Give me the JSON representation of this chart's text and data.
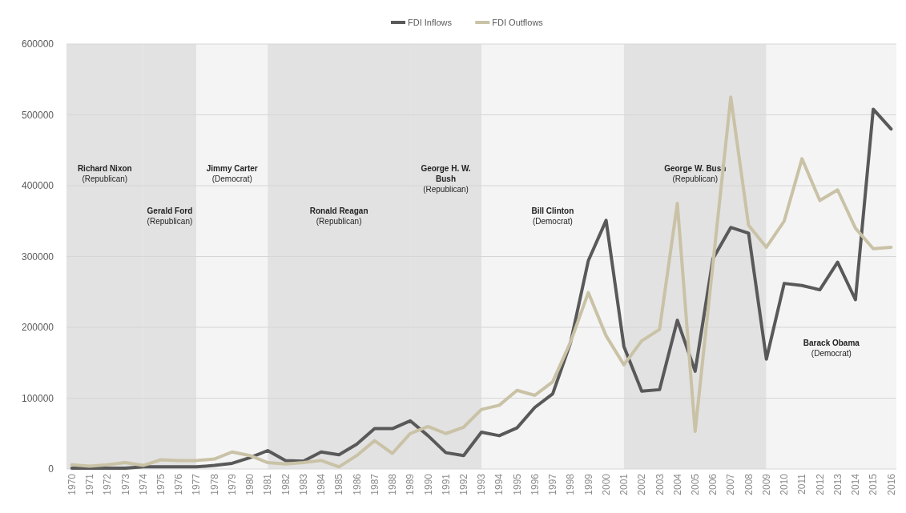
{
  "chart_data": {
    "type": "line",
    "categories": [
      "1970",
      "1971",
      "1972",
      "1973",
      "1974",
      "1975",
      "1976",
      "1977",
      "1978",
      "1979",
      "1980",
      "1981",
      "1982",
      "1983",
      "1984",
      "1985",
      "1986",
      "1987",
      "1988",
      "1989",
      "1990",
      "1991",
      "1992",
      "1993",
      "1994",
      "1995",
      "1996",
      "1997",
      "1998",
      "1999",
      "2000",
      "2001",
      "2002",
      "2003",
      "2004",
      "2005",
      "2006",
      "2007",
      "2008",
      "2009",
      "2010",
      "2011",
      "2012",
      "2013",
      "2014",
      "2015",
      "2016"
    ],
    "series": [
      {
        "name": "FDI Inflows",
        "color": "#595959",
        "values": [
          1000,
          1000,
          1000,
          1000,
          3000,
          3000,
          3000,
          3000,
          5000,
          8000,
          16000,
          26000,
          12000,
          11000,
          24000,
          20000,
          35000,
          57000,
          57000,
          68000,
          47000,
          23000,
          19000,
          52000,
          47000,
          58000,
          87000,
          106000,
          178000,
          294000,
          351000,
          173000,
          110000,
          112000,
          210000,
          138000,
          297000,
          341000,
          333000,
          155000,
          262000,
          259000,
          253000,
          292000,
          239000,
          508000,
          480000
        ]
      },
      {
        "name": "FDI Outflows",
        "color": "#c9c2a6",
        "values": [
          6000,
          4000,
          6000,
          9000,
          5000,
          13000,
          12000,
          12000,
          14000,
          24000,
          19000,
          9000,
          7000,
          9000,
          12000,
          3000,
          19000,
          40000,
          22000,
          50000,
          60000,
          50000,
          59000,
          84000,
          90000,
          111000,
          104000,
          123000,
          179000,
          249000,
          188000,
          147000,
          181000,
          197000,
          375000,
          53000,
          290000,
          525000,
          344000,
          313000,
          350000,
          438000,
          379000,
          394000,
          340000,
          311000,
          313000
        ]
      }
    ],
    "ylim": [
      0,
      600000
    ],
    "yticks": [
      0,
      100000,
      200000,
      300000,
      400000,
      500000,
      600000
    ],
    "grid": "y",
    "legend": "top",
    "line_style": "solid",
    "marker": "none",
    "bands": [
      {
        "axis": "x",
        "from": "1970",
        "to": "1974",
        "label": "Richard Nixon\n(Republican)",
        "color": "#e2e2e2"
      },
      {
        "axis": "x",
        "from": "1974",
        "to": "1977",
        "label": "Gerald Ford\n(Republican)",
        "color": "#e2e2e2"
      },
      {
        "axis": "x",
        "from": "1977",
        "to": "1981",
        "label": "Jimmy Carter\n(Democrat)",
        "color": "#f4f4f4"
      },
      {
        "axis": "x",
        "from": "1981",
        "to": "1989",
        "label": "Ronald Reagan\n(Republican)",
        "color": "#e2e2e2"
      },
      {
        "axis": "x",
        "from": "1989",
        "to": "1993",
        "label": "George H. W.\nBush\n(Republican)",
        "color": "#e2e2e2"
      },
      {
        "axis": "x",
        "from": "1993",
        "to": "2001",
        "label": "Bill Clinton\n(Democrat)",
        "color": "#f4f4f4"
      },
      {
        "axis": "x",
        "from": "2001",
        "to": "2009",
        "label": "George W. Bush\n(Republican)",
        "color": "#e2e2e2"
      },
      {
        "axis": "x",
        "from": "2009",
        "to": "2016",
        "label": "Barack Obama\n(Democrat)",
        "color": "#f4f4f4"
      }
    ]
  }
}
